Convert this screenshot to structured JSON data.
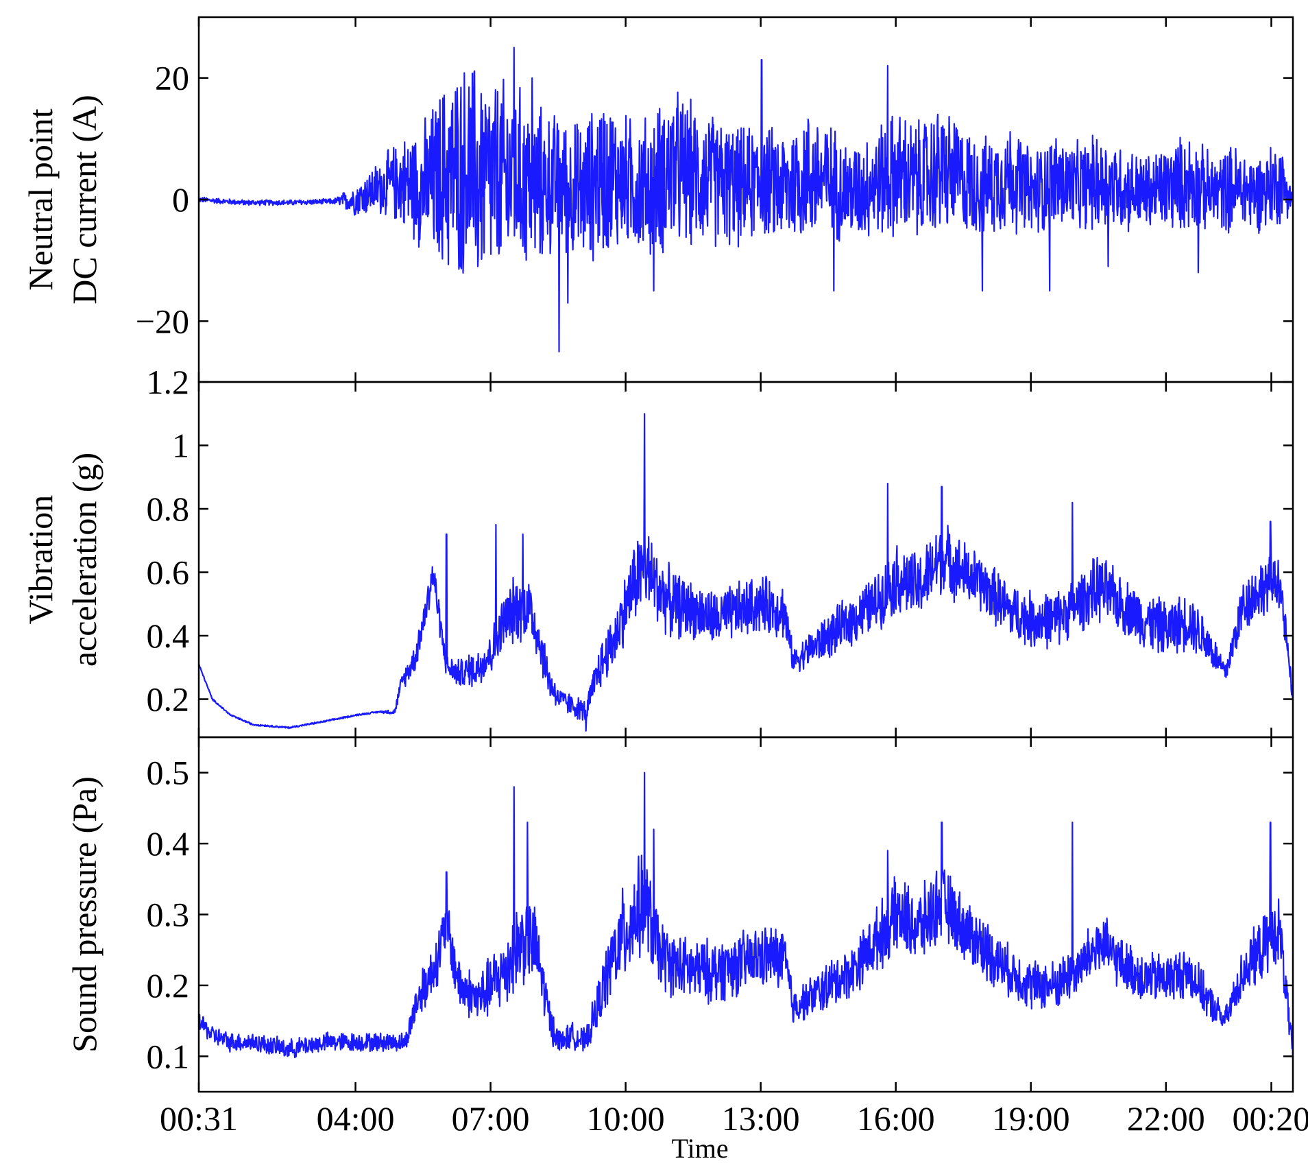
{
  "chart_data": [
    {
      "type": "line",
      "panel": "top",
      "ylabel_lines": [
        "Neutral point",
        "DC current (A)"
      ],
      "ylim": [
        -30,
        30
      ],
      "yticks": [
        -20,
        0,
        20
      ],
      "ytick_labels": [
        "−20",
        "0",
        "20"
      ],
      "color": "#1a1aff",
      "x": [
        0.0,
        1.0,
        2.0,
        3.0,
        3.5,
        4.0,
        4.5,
        5.0,
        5.5,
        6.0,
        6.5,
        7.0,
        7.5,
        8.0,
        8.5,
        9.0,
        9.5,
        10.0,
        10.5,
        11.0,
        11.5,
        12.0,
        12.5,
        13.0,
        13.5,
        14.0,
        14.5,
        15.0,
        15.5,
        16.0,
        16.5,
        17.0,
        17.5,
        18.0,
        18.5,
        19.0,
        19.5,
        20.0,
        20.5,
        21.0,
        21.5,
        22.0,
        22.5,
        23.0,
        23.5,
        24.0,
        24.3
      ],
      "y": [
        0,
        -0.5,
        -0.5,
        -0.3,
        0,
        2,
        3,
        2,
        4,
        5,
        3,
        4,
        2,
        3,
        1,
        4,
        3,
        2,
        5,
        4,
        3,
        2,
        3,
        2,
        4,
        3,
        1,
        3,
        4,
        3,
        5,
        3,
        2,
        4,
        1,
        3,
        2,
        3,
        2,
        1,
        2,
        3,
        1,
        2,
        1,
        3,
        0
      ],
      "envelope": [
        0.5,
        0.5,
        0.5,
        0.5,
        3,
        5,
        8,
        12,
        18,
        20,
        19,
        17,
        15,
        12,
        13,
        15,
        12,
        13,
        15,
        13,
        12,
        11,
        10,
        11,
        12,
        11,
        9,
        10,
        12,
        11,
        12,
        10,
        9,
        10,
        8,
        9,
        8,
        9,
        8,
        7,
        8,
        9,
        7,
        8,
        7,
        8,
        2
      ],
      "spikes": [
        [
          7.0,
          25
        ],
        [
          8.0,
          -25
        ],
        [
          8.2,
          -17
        ],
        [
          6.2,
          -11
        ],
        [
          7.4,
          20
        ],
        [
          10.1,
          -15
        ],
        [
          12.5,
          23
        ],
        [
          15.3,
          22
        ],
        [
          14.1,
          -15
        ],
        [
          17.4,
          -15
        ],
        [
          18.9,
          -15
        ],
        [
          20.2,
          -11
        ],
        [
          22.2,
          -12
        ]
      ]
    },
    {
      "type": "line",
      "panel": "middle",
      "ylabel_lines": [
        "Vibration",
        "acceleration (g)"
      ],
      "ylim": [
        0.08,
        1.2
      ],
      "yticks": [
        0.2,
        0.4,
        0.6,
        0.8,
        1.0,
        1.2
      ],
      "ytick_labels": [
        "0.2",
        "0.4",
        "0.6",
        "0.8",
        "1",
        "1.2"
      ],
      "color": "#1a1aff",
      "x": [
        0.0,
        0.3,
        0.7,
        1.2,
        2.0,
        2.8,
        3.5,
        4.0,
        4.35,
        4.5,
        4.8,
        5.0,
        5.2,
        5.5,
        5.8,
        6.2,
        6.5,
        6.8,
        7.0,
        7.3,
        7.5,
        7.8,
        8.0,
        8.3,
        8.6,
        8.9,
        9.2,
        9.5,
        9.7,
        9.9,
        10.2,
        10.5,
        11.0,
        11.5,
        12.0,
        12.5,
        13.0,
        13.2,
        13.5,
        14.0,
        14.5,
        15.0,
        15.5,
        16.0,
        16.5,
        17.0,
        17.5,
        18.0,
        18.5,
        19.0,
        19.5,
        20.0,
        20.5,
        21.0,
        21.5,
        22.0,
        22.4,
        22.8,
        23.2,
        23.6,
        24.0,
        24.3
      ],
      "y": [
        0.31,
        0.2,
        0.15,
        0.12,
        0.11,
        0.13,
        0.15,
        0.16,
        0.16,
        0.25,
        0.33,
        0.45,
        0.6,
        0.3,
        0.28,
        0.3,
        0.35,
        0.45,
        0.48,
        0.5,
        0.42,
        0.25,
        0.2,
        0.18,
        0.16,
        0.3,
        0.38,
        0.5,
        0.58,
        0.62,
        0.55,
        0.5,
        0.48,
        0.45,
        0.48,
        0.5,
        0.48,
        0.32,
        0.35,
        0.4,
        0.45,
        0.5,
        0.58,
        0.55,
        0.65,
        0.6,
        0.55,
        0.48,
        0.45,
        0.45,
        0.5,
        0.55,
        0.5,
        0.45,
        0.42,
        0.45,
        0.38,
        0.28,
        0.5,
        0.55,
        0.58,
        0.2
      ],
      "envelope": [
        0.003,
        0.003,
        0.003,
        0.003,
        0.003,
        0.003,
        0.003,
        0.003,
        0.01,
        0.03,
        0.05,
        0.06,
        0.07,
        0.04,
        0.05,
        0.07,
        0.08,
        0.1,
        0.12,
        0.12,
        0.1,
        0.06,
        0.04,
        0.04,
        0.04,
        0.08,
        0.1,
        0.12,
        0.15,
        0.15,
        0.13,
        0.12,
        0.1,
        0.1,
        0.1,
        0.1,
        0.1,
        0.04,
        0.06,
        0.08,
        0.09,
        0.1,
        0.12,
        0.12,
        0.13,
        0.11,
        0.1,
        0.1,
        0.1,
        0.1,
        0.1,
        0.12,
        0.1,
        0.1,
        0.1,
        0.1,
        0.08,
        0.04,
        0.1,
        0.1,
        0.1,
        0.02
      ],
      "spikes": [
        [
          9.9,
          1.1
        ],
        [
          15.3,
          0.88
        ],
        [
          16.5,
          0.87
        ],
        [
          19.4,
          0.82
        ],
        [
          23.8,
          0.76
        ],
        [
          6.6,
          0.75
        ],
        [
          7.2,
          0.72
        ],
        [
          5.5,
          0.72
        ],
        [
          8.6,
          0.1
        ]
      ]
    },
    {
      "type": "line",
      "panel": "bottom",
      "ylabel_lines": [
        "Sound pressure (Pa)"
      ],
      "xlabel": "Time",
      "ylim": [
        0.05,
        0.55
      ],
      "yticks": [
        0.1,
        0.2,
        0.3,
        0.4,
        0.5
      ],
      "ytick_labels": [
        "0.1",
        "0.2",
        "0.3",
        "0.4",
        "0.5"
      ],
      "color": "#1a1aff",
      "x": [
        0.0,
        0.3,
        0.7,
        1.2,
        2.0,
        2.8,
        3.5,
        4.0,
        4.4,
        4.6,
        4.8,
        5.0,
        5.2,
        5.5,
        5.8,
        6.2,
        6.5,
        6.8,
        7.0,
        7.3,
        7.5,
        7.8,
        8.0,
        8.3,
        8.6,
        8.9,
        9.2,
        9.5,
        9.7,
        9.9,
        10.2,
        10.5,
        11.0,
        11.5,
        12.0,
        12.5,
        13.0,
        13.2,
        13.5,
        14.0,
        14.5,
        15.0,
        15.5,
        16.0,
        16.5,
        17.0,
        17.5,
        18.0,
        18.5,
        19.0,
        19.5,
        20.0,
        20.5,
        21.0,
        21.5,
        22.0,
        22.4,
        22.8,
        23.2,
        23.6,
        24.0,
        24.3
      ],
      "y": [
        0.15,
        0.13,
        0.12,
        0.12,
        0.11,
        0.12,
        0.12,
        0.12,
        0.12,
        0.12,
        0.17,
        0.2,
        0.22,
        0.28,
        0.2,
        0.18,
        0.2,
        0.22,
        0.25,
        0.27,
        0.25,
        0.15,
        0.12,
        0.13,
        0.12,
        0.18,
        0.24,
        0.28,
        0.3,
        0.32,
        0.25,
        0.23,
        0.22,
        0.22,
        0.23,
        0.24,
        0.24,
        0.17,
        0.18,
        0.2,
        0.22,
        0.26,
        0.3,
        0.28,
        0.32,
        0.28,
        0.25,
        0.22,
        0.2,
        0.2,
        0.22,
        0.26,
        0.23,
        0.21,
        0.21,
        0.22,
        0.18,
        0.15,
        0.22,
        0.25,
        0.28,
        0.1
      ],
      "envelope": [
        0.015,
        0.015,
        0.015,
        0.015,
        0.015,
        0.015,
        0.015,
        0.015,
        0.015,
        0.015,
        0.03,
        0.04,
        0.04,
        0.05,
        0.04,
        0.04,
        0.05,
        0.06,
        0.07,
        0.07,
        0.06,
        0.03,
        0.02,
        0.02,
        0.02,
        0.04,
        0.06,
        0.08,
        0.08,
        0.08,
        0.06,
        0.05,
        0.05,
        0.05,
        0.05,
        0.05,
        0.05,
        0.03,
        0.03,
        0.04,
        0.04,
        0.05,
        0.06,
        0.06,
        0.06,
        0.05,
        0.05,
        0.04,
        0.04,
        0.04,
        0.04,
        0.05,
        0.04,
        0.04,
        0.04,
        0.04,
        0.03,
        0.02,
        0.04,
        0.05,
        0.05,
        0.02
      ],
      "spikes": [
        [
          9.9,
          0.5
        ],
        [
          7.0,
          0.48
        ],
        [
          7.3,
          0.43
        ],
        [
          16.5,
          0.43
        ],
        [
          19.4,
          0.43
        ],
        [
          23.8,
          0.43
        ],
        [
          5.5,
          0.36
        ],
        [
          15.3,
          0.39
        ],
        [
          10.1,
          0.42
        ]
      ]
    }
  ],
  "x_axis": {
    "xlim": [
      0,
      24.3
    ],
    "ticks": [
      0,
      3.48,
      6.48,
      9.48,
      12.48,
      15.48,
      18.48,
      21.48,
      23.82
    ],
    "tick_labels": [
      "00:31",
      "04:00",
      "07:00",
      "10:00",
      "13:00",
      "16:00",
      "19:00",
      "22:00",
      "00:20"
    ],
    "label": "Time"
  }
}
